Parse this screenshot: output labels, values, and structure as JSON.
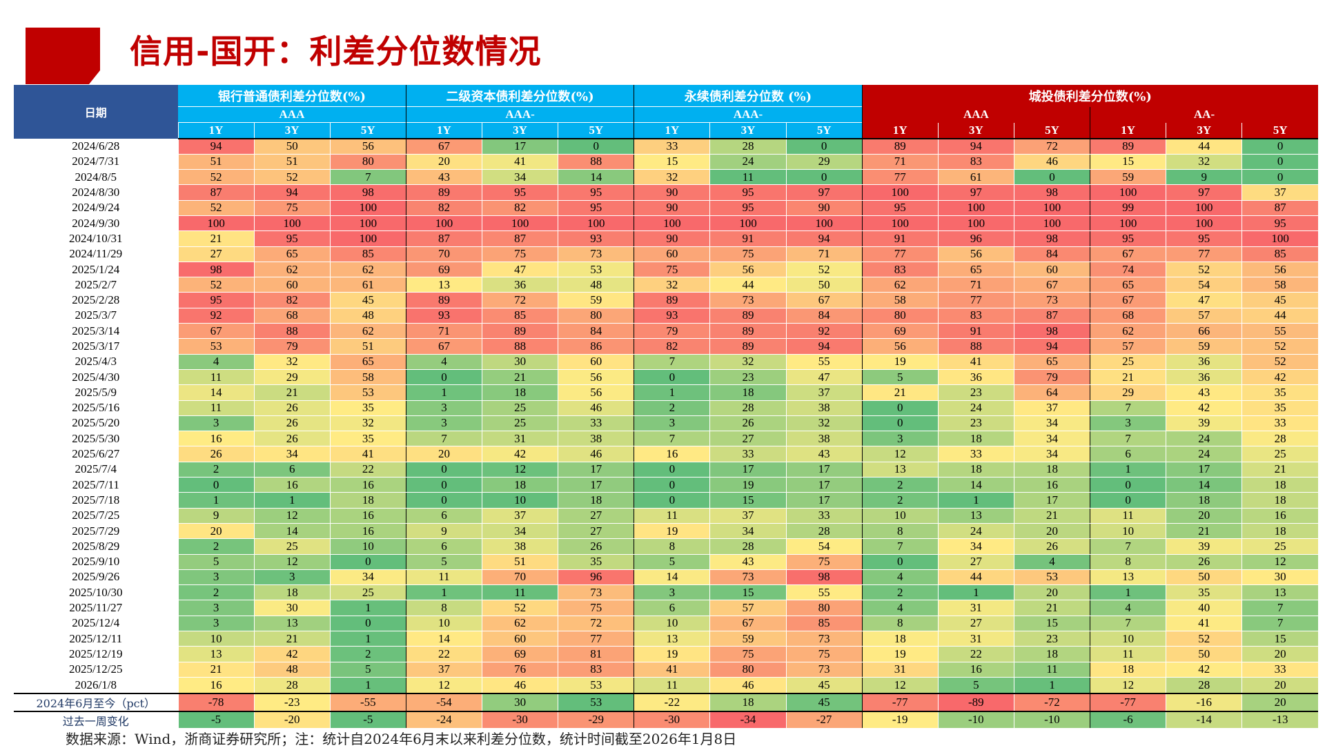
{
  "title": "信用-国开：利差分位数情况",
  "colors": {
    "title": "#C00000",
    "date_header": "#2F5597",
    "group_blue": "#00B0F0",
    "group_red": "#C00000",
    "scale_low": "#63BE7B",
    "scale_mid": "#FFEB84",
    "scale_high": "#F8696B"
  },
  "header": {
    "date_label": "日期",
    "groups": [
      {
        "label": "银行普通债利差分位数(%)",
        "subgroups": [
          {
            "label": "AAA",
            "tenors": [
              "1Y",
              "3Y",
              "5Y"
            ]
          }
        ]
      },
      {
        "label": "二级资本债利差分位数(%)",
        "subgroups": [
          {
            "label": "AAA-",
            "tenors": [
              "1Y",
              "3Y",
              "5Y"
            ]
          }
        ]
      },
      {
        "label": "永续债利差分位数 (%)",
        "subgroups": [
          {
            "label": "AAA-",
            "tenors": [
              "1Y",
              "3Y",
              "5Y"
            ]
          }
        ]
      },
      {
        "label": "城投债利差分位数(%)",
        "subgroups": [
          {
            "label": "AAA",
            "tenors": [
              "1Y",
              "3Y",
              "5Y"
            ]
          },
          {
            "label": "AA-",
            "tenors": [
              "1Y",
              "3Y",
              "5Y"
            ]
          }
        ]
      }
    ]
  },
  "rows": [
    {
      "date": "2024/6/28",
      "values": [
        94,
        50,
        56,
        67,
        17,
        0,
        33,
        28,
        0,
        89,
        94,
        72,
        89,
        44,
        0
      ]
    },
    {
      "date": "2024/7/31",
      "values": [
        51,
        51,
        80,
        20,
        41,
        88,
        15,
        24,
        29,
        71,
        83,
        46,
        15,
        32,
        0
      ]
    },
    {
      "date": "2024/8/5",
      "values": [
        52,
        52,
        7,
        43,
        34,
        14,
        32,
        11,
        0,
        77,
        61,
        0,
        59,
        9,
        0
      ]
    },
    {
      "date": "2024/8/30",
      "values": [
        87,
        94,
        98,
        89,
        95,
        95,
        90,
        95,
        97,
        100,
        97,
        98,
        100,
        97,
        37
      ]
    },
    {
      "date": "2024/9/24",
      "values": [
        52,
        75,
        100,
        82,
        82,
        95,
        90,
        95,
        90,
        95,
        100,
        100,
        99,
        100,
        87
      ]
    },
    {
      "date": "2024/9/30",
      "values": [
        100,
        100,
        100,
        100,
        100,
        100,
        100,
        100,
        100,
        100,
        100,
        100,
        100,
        100,
        95
      ]
    },
    {
      "date": "2024/10/31",
      "values": [
        21,
        95,
        100,
        87,
        87,
        93,
        90,
        91,
        94,
        91,
        96,
        98,
        95,
        95,
        100
      ]
    },
    {
      "date": "2024/11/29",
      "values": [
        27,
        65,
        85,
        70,
        75,
        73,
        60,
        75,
        71,
        77,
        56,
        84,
        67,
        77,
        85
      ]
    },
    {
      "date": "2025/1/24",
      "values": [
        98,
        62,
        62,
        69,
        47,
        53,
        75,
        56,
        52,
        83,
        65,
        60,
        74,
        52,
        56
      ]
    },
    {
      "date": "2025/2/7",
      "values": [
        52,
        60,
        61,
        13,
        36,
        48,
        32,
        44,
        50,
        62,
        71,
        67,
        65,
        54,
        58
      ]
    },
    {
      "date": "2025/2/28",
      "values": [
        95,
        82,
        45,
        89,
        72,
        59,
        89,
        73,
        67,
        58,
        77,
        73,
        67,
        47,
        45
      ]
    },
    {
      "date": "2025/3/7",
      "values": [
        92,
        68,
        48,
        93,
        85,
        80,
        93,
        89,
        84,
        80,
        83,
        87,
        68,
        57,
        44
      ]
    },
    {
      "date": "2025/3/14",
      "values": [
        67,
        88,
        62,
        71,
        89,
        84,
        79,
        89,
        92,
        69,
        91,
        98,
        62,
        66,
        55
      ]
    },
    {
      "date": "2025/3/17",
      "values": [
        53,
        79,
        51,
        67,
        88,
        86,
        82,
        89,
        94,
        56,
        88,
        94,
        57,
        59,
        52
      ]
    },
    {
      "date": "2025/4/3",
      "values": [
        4,
        32,
        65,
        4,
        30,
        60,
        7,
        32,
        55,
        19,
        41,
        65,
        25,
        36,
        52
      ]
    },
    {
      "date": "2025/4/30",
      "values": [
        11,
        29,
        58,
        0,
        21,
        56,
        0,
        23,
        47,
        5,
        36,
        79,
        21,
        36,
        42
      ]
    },
    {
      "date": "2025/5/9",
      "values": [
        14,
        21,
        53,
        1,
        18,
        56,
        1,
        18,
        37,
        21,
        23,
        64,
        29,
        43,
        35
      ]
    },
    {
      "date": "2025/5/16",
      "values": [
        11,
        26,
        35,
        3,
        25,
        46,
        2,
        28,
        38,
        0,
        24,
        37,
        7,
        42,
        35
      ]
    },
    {
      "date": "2025/5/20",
      "values": [
        3,
        26,
        32,
        3,
        25,
        33,
        3,
        26,
        32,
        0,
        23,
        34,
        3,
        39,
        33
      ]
    },
    {
      "date": "2025/5/30",
      "values": [
        16,
        26,
        35,
        7,
        31,
        38,
        7,
        27,
        38,
        3,
        18,
        34,
        7,
        24,
        28
      ]
    },
    {
      "date": "2025/6/27",
      "values": [
        26,
        34,
        41,
        20,
        42,
        46,
        16,
        33,
        43,
        12,
        33,
        34,
        6,
        24,
        25
      ]
    },
    {
      "date": "2025/7/4",
      "values": [
        2,
        6,
        22,
        0,
        12,
        17,
        0,
        17,
        17,
        13,
        18,
        18,
        1,
        17,
        21
      ]
    },
    {
      "date": "2025/7/11",
      "values": [
        0,
        16,
        16,
        0,
        18,
        17,
        0,
        19,
        17,
        2,
        14,
        16,
        0,
        14,
        18
      ]
    },
    {
      "date": "2025/7/18",
      "values": [
        1,
        1,
        18,
        0,
        10,
        18,
        0,
        15,
        17,
        2,
        1,
        17,
        0,
        18,
        18
      ]
    },
    {
      "date": "2025/7/25",
      "values": [
        9,
        12,
        16,
        6,
        37,
        27,
        11,
        37,
        33,
        10,
        13,
        21,
        11,
        20,
        16
      ]
    },
    {
      "date": "2025/7/29",
      "values": [
        20,
        14,
        16,
        9,
        34,
        27,
        19,
        34,
        28,
        8,
        24,
        20,
        10,
        21,
        18
      ]
    },
    {
      "date": "2025/8/29",
      "values": [
        2,
        25,
        10,
        6,
        38,
        26,
        8,
        28,
        54,
        7,
        34,
        26,
        7,
        39,
        25
      ]
    },
    {
      "date": "2025/9/10",
      "values": [
        5,
        12,
        0,
        5,
        51,
        35,
        5,
        43,
        75,
        0,
        27,
        4,
        8,
        26,
        12
      ]
    },
    {
      "date": "2025/9/26",
      "values": [
        3,
        3,
        34,
        11,
        70,
        96,
        14,
        73,
        98,
        4,
        44,
        53,
        13,
        50,
        30
      ]
    },
    {
      "date": "2025/10/30",
      "values": [
        2,
        18,
        25,
        1,
        11,
        73,
        3,
        15,
        55,
        2,
        1,
        20,
        1,
        35,
        13
      ]
    },
    {
      "date": "2025/11/27",
      "values": [
        3,
        30,
        1,
        8,
        52,
        75,
        6,
        57,
        80,
        4,
        31,
        21,
        4,
        40,
        7
      ]
    },
    {
      "date": "2025/12/4",
      "values": [
        3,
        13,
        0,
        10,
        62,
        72,
        10,
        67,
        85,
        8,
        27,
        15,
        7,
        41,
        7
      ]
    },
    {
      "date": "2025/12/11",
      "values": [
        10,
        21,
        1,
        14,
        60,
        77,
        13,
        59,
        73,
        18,
        31,
        23,
        10,
        52,
        15
      ]
    },
    {
      "date": "2025/12/19",
      "values": [
        13,
        42,
        2,
        22,
        69,
        81,
        19,
        75,
        75,
        19,
        22,
        18,
        11,
        50,
        20
      ]
    },
    {
      "date": "2025/12/25",
      "values": [
        21,
        48,
        5,
        37,
        76,
        83,
        41,
        80,
        73,
        31,
        16,
        11,
        18,
        42,
        33
      ]
    },
    {
      "date": "2026/1/8",
      "values": [
        16,
        28,
        1,
        12,
        46,
        53,
        11,
        46,
        45,
        12,
        5,
        1,
        12,
        28,
        20
      ]
    }
  ],
  "summary": [
    {
      "label": "2024年6月至今（pct）",
      "values": [
        -78,
        -23,
        -55,
        -54,
        30,
        53,
        -22,
        18,
        45,
        -77,
        -89,
        -72,
        -77,
        -16,
        20
      ]
    },
    {
      "label": "过去一周变化",
      "values": [
        -5,
        -20,
        -5,
        -24,
        -30,
        -29,
        -30,
        -34,
        -27,
        -19,
        -10,
        -10,
        -6,
        -14,
        -13
      ]
    }
  ],
  "footnote": "数据来源：Wind，浙商证券研究所；注：统计自2024年6月末以来利差分位数，统计时间截至2026年1月8日"
}
